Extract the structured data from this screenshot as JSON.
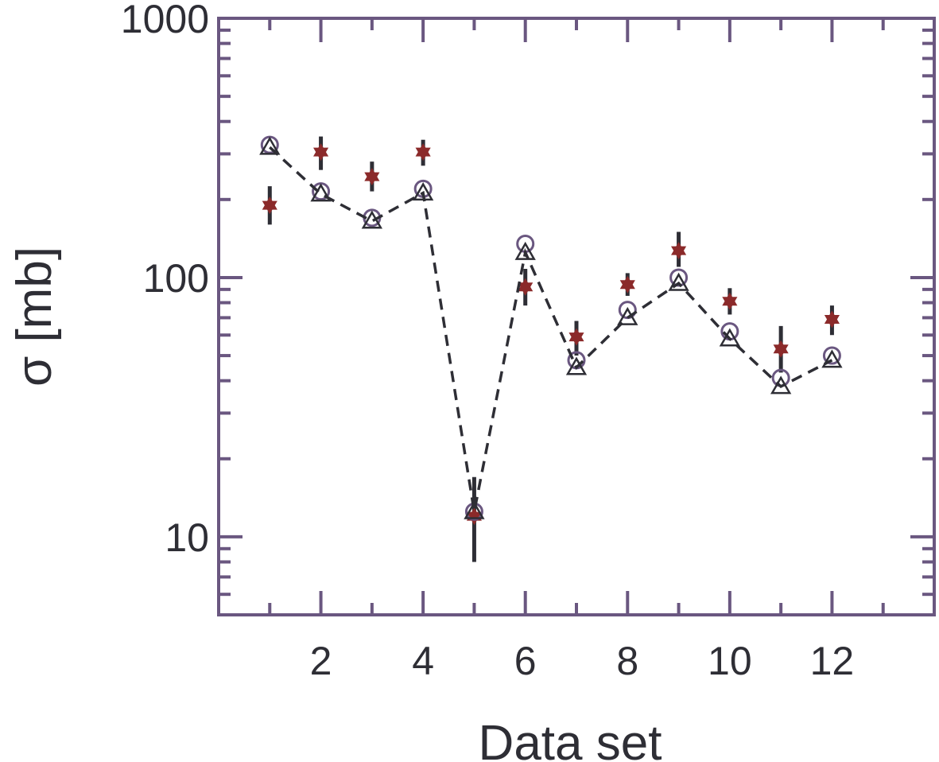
{
  "chart_data": {
    "type": "scatter",
    "xlabel": "Data set",
    "ylabel": "σ  [mb]",
    "xlim": [
      0,
      14
    ],
    "ylim": [
      5,
      1000
    ],
    "yscale": "log",
    "grid": false,
    "x_ticks": [
      2,
      4,
      6,
      8,
      10,
      12
    ],
    "x_tick_labels": [
      "2",
      "4",
      "6",
      "8",
      "10",
      "12"
    ],
    "y_ticks": [
      10,
      100,
      1000
    ],
    "y_tick_labels": [
      "10",
      "100",
      "1000"
    ],
    "series": [
      {
        "marker": "star",
        "color": "#8b2a2a",
        "x": [
          1,
          2,
          3,
          4,
          5,
          6,
          7,
          8,
          9,
          10,
          11,
          12
        ],
        "y": [
          190,
          305,
          245,
          305,
          12,
          92,
          59,
          94,
          127,
          81,
          53,
          69
        ],
        "err_low": [
          160,
          260,
          215,
          270,
          8,
          78,
          50,
          85,
          110,
          72,
          43,
          60
        ],
        "err_high": [
          225,
          350,
          280,
          340,
          17,
          108,
          68,
          104,
          150,
          91,
          65,
          78
        ]
      },
      {
        "marker": "circle",
        "color": "#6a5780",
        "x": [
          1,
          2,
          3,
          4,
          5,
          6,
          7,
          8,
          9,
          10,
          11,
          12
        ],
        "y": [
          325,
          215,
          170,
          220,
          12.5,
          135,
          48,
          75,
          100,
          62,
          41,
          50
        ]
      },
      {
        "marker": "triangle",
        "color": "#2e2e35",
        "line": "dashed",
        "x": [
          1,
          2,
          3,
          4,
          5,
          6,
          7,
          8,
          9,
          10,
          11,
          12
        ],
        "y": [
          318,
          210,
          165,
          212,
          12.5,
          125,
          45,
          70,
          95,
          58,
          38,
          48
        ]
      }
    ]
  },
  "colors": {
    "frame": "#6a5780",
    "text": "#2e2e35",
    "errorbar": "#2e2e35"
  }
}
